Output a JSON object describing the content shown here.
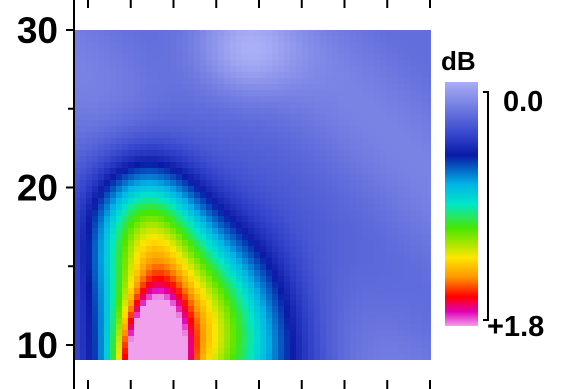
{
  "chart_data": {
    "type": "heatmap",
    "title": "",
    "xlabel": "",
    "ylabel": "",
    "y_ticks": [
      {
        "value": 10,
        "label": "10"
      },
      {
        "value": 20,
        "label": "20"
      },
      {
        "value": 30,
        "label": "30"
      }
    ],
    "y_minor_ticks": [
      15,
      25
    ],
    "ylim": [
      8,
      30
    ],
    "x_tick_count": 9,
    "colorbar": {
      "unit_label": "dB",
      "top_label": "0.0",
      "bottom_label": "+1.8",
      "range": [
        0.0,
        1.8
      ],
      "stops": [
        {
          "v": 0.0,
          "color": "#a9aef5"
        },
        {
          "v": 0.22,
          "color": "#3344cc"
        },
        {
          "v": 0.3,
          "color": "#0a1aa6"
        },
        {
          "v": 0.42,
          "color": "#00b4e6"
        },
        {
          "v": 0.5,
          "color": "#00e6c8"
        },
        {
          "v": 0.6,
          "color": "#4ae600"
        },
        {
          "v": 0.72,
          "color": "#ffe600"
        },
        {
          "v": 0.8,
          "color": "#ff9600"
        },
        {
          "v": 0.88,
          "color": "#ff0000"
        },
        {
          "v": 0.94,
          "color": "#e000b4"
        },
        {
          "v": 1.0,
          "color": "#f0a0ec"
        }
      ]
    },
    "hotspots": [
      {
        "x": 0.22,
        "y": 8.0,
        "peak": 1.8,
        "sx": 0.06,
        "sy": 3.0
      },
      {
        "x": 0.28,
        "y": 10.5,
        "peak": 0.9,
        "sx": 0.16,
        "sy": 5.5
      },
      {
        "x": 0.2,
        "y": 17.5,
        "peak": 0.55,
        "sx": 0.1,
        "sy": 3.2
      },
      {
        "x": 0.45,
        "y": 11,
        "peak": 0.35,
        "sx": 0.18,
        "sy": 5.0
      }
    ],
    "background_level": 0.2,
    "bright_spot": {
      "x": 0.48,
      "y": 28.5,
      "level": -0.1,
      "sx": 0.1,
      "sy": 2.0
    }
  }
}
